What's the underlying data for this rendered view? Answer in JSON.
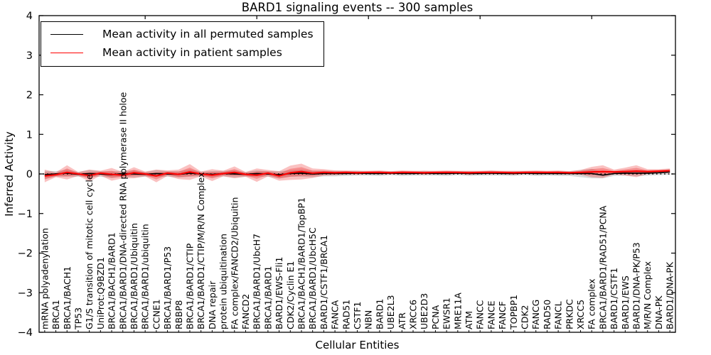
{
  "figure": {
    "title": "BARD1 signaling events -- 300 samples",
    "xlabel": "Cellular Entities",
    "ylabel": "Inferred Activity"
  },
  "chart_data": {
    "type": "line",
    "title": "BARD1 signaling events -- 300 samples",
    "xlabel": "Cellular Entities",
    "ylabel": "Inferred Activity",
    "ylim": [
      -4,
      4
    ],
    "yticks": [
      4,
      3,
      2,
      1,
      0,
      -1,
      -2,
      -3,
      -4
    ],
    "grid": false,
    "legend_position": "upper left",
    "zero_line": "dotted black at y=0",
    "top_tick_indices": [
      9,
      19,
      29,
      39,
      49
    ],
    "categories": [
      "mRNA polyadenylation",
      "BRCA1",
      "BRCA1/BACH1",
      "TP53",
      "G1/S transition of mitotic cell cycle",
      "UniProt:Q9BZD1",
      "BRCA1/BACH1/BARD1",
      "BRCA1/BARD1/DNA-directed RNA polymerase II holoe",
      "BRCA1/BARD1/Ubiquitin",
      "BRCA1/BARD1/ubiquitin",
      "CCNE1",
      "BRCA1/BARD1/P53",
      "RBBP8",
      "BRCA1/BARD1/CTIP",
      "BRCA1/BARD1/CTIP/M/R/N Complex",
      "DNA repair",
      "protein ubiquitination",
      "FA complex/FANCD2/Ubiquitin",
      "FANCD2",
      "BRCA1/BARD1/UbcH7",
      "BRCA1/BARD1",
      "BARD1/EWS-Fli1",
      "CDK2/Cyclin E1",
      "BRCA1/BACH1/BARD1/TopBP1",
      "BRCA1/BARD1/UbcH5C",
      "BARD1/CSTF1/BRCA1",
      "FANCA",
      "RAD51",
      "CSTF1",
      "NBN",
      "BARD1",
      "UBE2L3",
      "ATR",
      "XRCC6",
      "UBE2D3",
      "PCNA",
      "EWSR1",
      "MRE11A",
      "ATM",
      "FANCC",
      "FANCE",
      "FANCF",
      "TOPBP1",
      "CDK2",
      "FANCG",
      "RAD50",
      "FANCL",
      "PRKDC",
      "XRCC5",
      "FA complex",
      "BRCA1/BARD1/RAD51/PCNA",
      "BARD1/CSTF1",
      "BARD1/EWS",
      "BARD1/DNA-PK/P53",
      "M/R/N Complex",
      "DNA-PK",
      "BARD1/DNA-PK"
    ],
    "series": [
      {
        "name": "Mean activity in all permuted samples",
        "color": "#000000",
        "band_color": "#808080",
        "values": [
          -0.02,
          0,
          0.02,
          -0.01,
          0.01,
          0,
          -0.02,
          0.01,
          0,
          -0.01,
          0.01,
          0,
          -0.01,
          0.02,
          0,
          -0.01,
          0.01,
          0,
          -0.01,
          0.01,
          0,
          -0.02,
          0.01,
          0.02,
          0,
          0.01,
          0.01,
          0.01,
          0.02,
          0.01,
          0.01,
          0.02,
          0.01,
          0.01,
          0.02,
          0.01,
          0.01,
          0.02,
          0.01,
          0.01,
          0.02,
          0.01,
          0.01,
          0.02,
          0.01,
          0.01,
          0.01,
          0.01,
          0.01,
          0.01,
          -0.03,
          0.01,
          0.02,
          0.02,
          0.02,
          0.03,
          0.05
        ],
        "band_halfwidth": [
          0.1,
          0.07,
          0.09,
          0.06,
          0.09,
          0.07,
          0.08,
          0.07,
          0.09,
          0.06,
          0.09,
          0.07,
          0.08,
          0.09,
          0.06,
          0.08,
          0.07,
          0.09,
          0.06,
          0.08,
          0.07,
          0.09,
          0.08,
          0.09,
          0.08,
          0.07,
          0.07,
          0.06,
          0.06,
          0.05,
          0.06,
          0.05,
          0.06,
          0.05,
          0.06,
          0.05,
          0.06,
          0.05,
          0.06,
          0.05,
          0.06,
          0.05,
          0.06,
          0.05,
          0.06,
          0.05,
          0.06,
          0.06,
          0.09,
          0.12,
          0.08,
          0.06,
          0.06,
          0.08,
          0.06,
          0.06,
          0.07
        ]
      },
      {
        "name": "Mean activity in patient samples",
        "color": "#ff0000",
        "band_color": "#ee2222",
        "values": [
          -0.05,
          -0.02,
          0.04,
          0,
          -0.04,
          0.02,
          -0.01,
          -0.03,
          0.03,
          0,
          -0.05,
          0.02,
          -0.01,
          0.05,
          0,
          -0.03,
          0.01,
          0.04,
          -0.01,
          -0.03,
          0.02,
          -0.05,
          0.03,
          0.06,
          0.02,
          0.04,
          0.03,
          0.04,
          0.03,
          0.04,
          0.04,
          0.03,
          0.04,
          0.04,
          0.03,
          0.04,
          0.04,
          0.04,
          0.03,
          0.04,
          0.04,
          0.04,
          0.03,
          0.04,
          0.04,
          0.04,
          0.04,
          0.03,
          0.04,
          0.05,
          0.06,
          0.05,
          0.06,
          0.07,
          0.06,
          0.07,
          0.08
        ],
        "band_halfwidth": [
          0.16,
          0.06,
          0.18,
          0.05,
          0.15,
          0.06,
          0.16,
          0.08,
          0.14,
          0.06,
          0.16,
          0.07,
          0.12,
          0.2,
          0.06,
          0.15,
          0.07,
          0.15,
          0.06,
          0.17,
          0.08,
          0.12,
          0.18,
          0.2,
          0.12,
          0.08,
          0.06,
          0.05,
          0.05,
          0.04,
          0.05,
          0.04,
          0.05,
          0.04,
          0.05,
          0.04,
          0.05,
          0.04,
          0.05,
          0.04,
          0.05,
          0.04,
          0.05,
          0.04,
          0.05,
          0.04,
          0.05,
          0.04,
          0.06,
          0.13,
          0.16,
          0.06,
          0.1,
          0.15,
          0.06,
          0.05,
          0.06
        ]
      }
    ]
  }
}
